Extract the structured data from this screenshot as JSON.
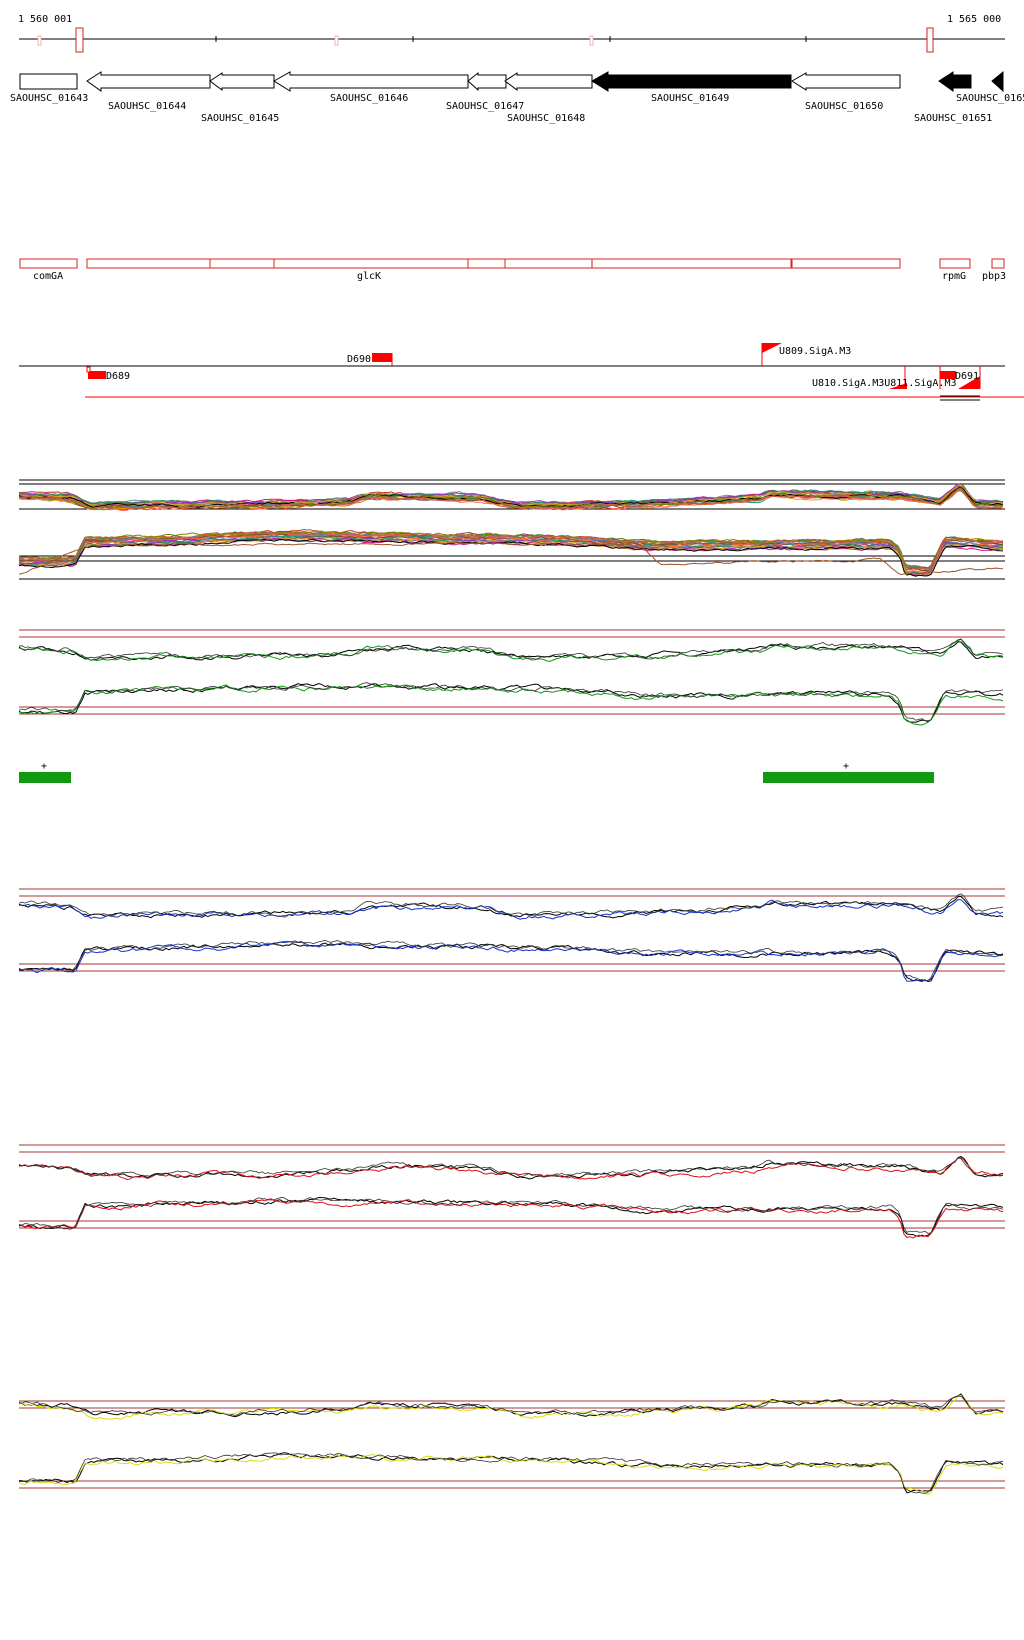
{
  "axis": {
    "start_label": "1 560 001",
    "end_label": "1 565 000",
    "start": 1560001,
    "end": 1565000
  },
  "genes": [
    {
      "id": "SAOUHSC_01643",
      "strand": "+",
      "highlight": false
    },
    {
      "id": "SAOUHSC_01644",
      "strand": "-",
      "highlight": false
    },
    {
      "id": "SAOUHSC_01645",
      "strand": "-",
      "highlight": false
    },
    {
      "id": "SAOUHSC_01646",
      "strand": "-",
      "highlight": false
    },
    {
      "id": "SAOUHSC_01647",
      "strand": "-",
      "highlight": false
    },
    {
      "id": "SAOUHSC_01648",
      "strand": "-",
      "highlight": false
    },
    {
      "id": "SAOUHSC_01649",
      "strand": "-",
      "highlight": true
    },
    {
      "id": "SAOUHSC_01650",
      "strand": "-",
      "highlight": false
    },
    {
      "id": "SAOUHSC_01651",
      "strand": "-",
      "highlight": true
    },
    {
      "id": "SAOUHSC_0165",
      "strand": "-",
      "highlight": true
    }
  ],
  "gene_names": [
    "comGA",
    "glcK",
    "rpmG",
    "pbp3"
  ],
  "features": {
    "d689": "D689",
    "d690": "D690",
    "d691": "D691",
    "u809": "U809.SigA.M3",
    "u810": "U810.SigA.M3U811.SigA.M3"
  },
  "regions": {
    "plus_a": "+",
    "plus_b": "+"
  },
  "colors": {
    "feature_red": "#ff0000",
    "gene_outline_red": "#dd2222",
    "track_green": "#119911",
    "track_blue": "#1133cc",
    "track_red": "#dd1111",
    "track_yellow": "#dddd11",
    "guide_line": "#aa3333"
  }
}
